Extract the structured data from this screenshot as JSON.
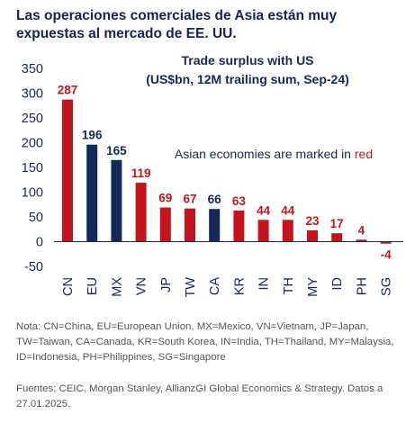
{
  "header": {
    "title": "Las operaciones comerciales de Asia están muy expuestas al mercado de EE. UU."
  },
  "chart_data": {
    "type": "bar",
    "title": "Trade surplus with US",
    "subtitle": "(US$bn, 12M trailing sum, Sep-24)",
    "annotation_prefix": "Asian economies are marked in ",
    "annotation_highlight": "red",
    "categories": [
      "CN",
      "EU",
      "MX",
      "VN",
      "JP",
      "TW",
      "CA",
      "KR",
      "IN",
      "TH",
      "MY",
      "ID",
      "PH",
      "SG"
    ],
    "values": [
      287,
      196,
      165,
      119,
      69,
      67,
      66,
      63,
      44,
      44,
      23,
      17,
      4,
      -4
    ],
    "asian": [
      true,
      false,
      false,
      true,
      true,
      true,
      false,
      true,
      true,
      true,
      true,
      true,
      true,
      true
    ],
    "ylim": [
      -50,
      350
    ],
    "yticks": [
      -50,
      0,
      50,
      100,
      150,
      200,
      250,
      300,
      350
    ],
    "grid": false,
    "colors": {
      "asian": "#c4151c",
      "other": "#14285a",
      "axis": "#14285a"
    }
  },
  "footer": {
    "note": "Nota: CN=China, EU=European Union, MX=Mexico, VN=Vietnam, JP=Japan, TW=Taiwan, CA=Canada, KR=South Korea, IN=India, TH=Thailand, MY=Malaysia, ID=Indonesia, PH=Philippines, SG=Singapore",
    "source": "Fuentes: CEIC, Morgan Stanley, AllianzGI Global Economics & Strategy. Datos a 27.01.2025."
  }
}
